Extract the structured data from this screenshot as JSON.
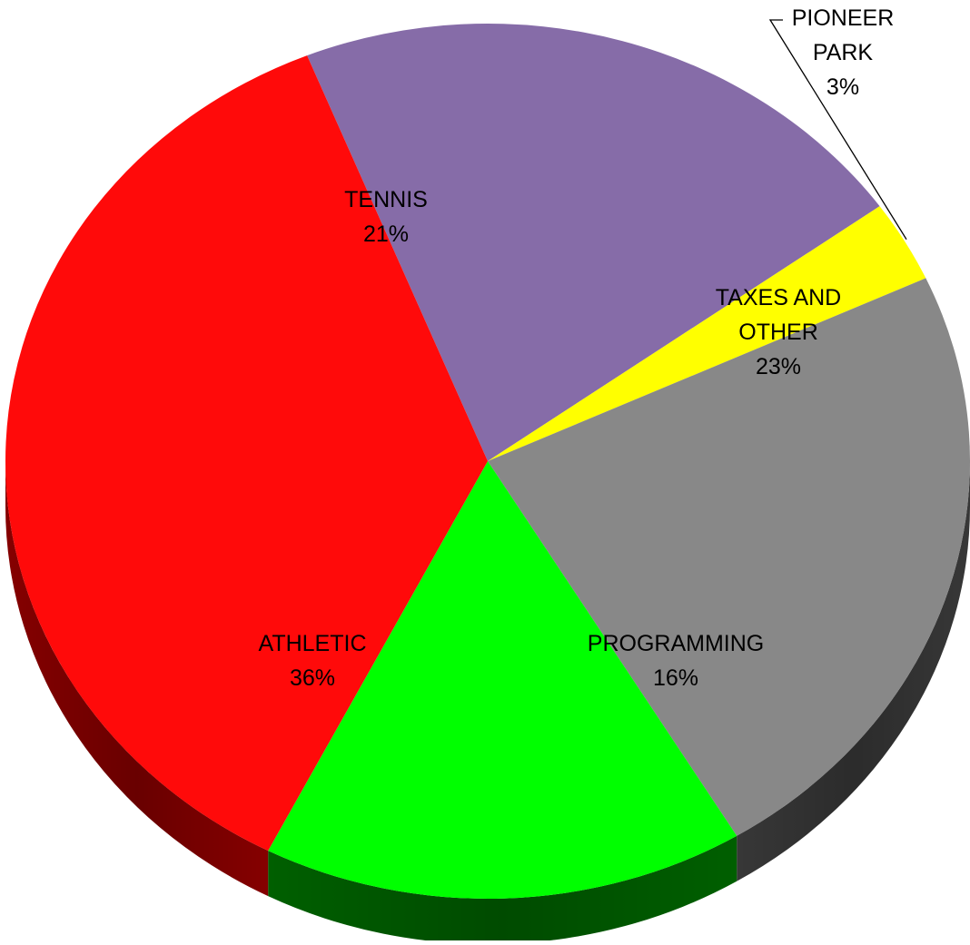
{
  "chart_data": {
    "type": "pie",
    "title": "",
    "three_d": true,
    "start_angle_deg": 248,
    "direction": "clockwise",
    "slices": [
      {
        "key": "tennis",
        "label_lines": [
          "TENNIS"
        ],
        "percent_label": "21%",
        "value": 21,
        "color": "#866CA8",
        "side_color": "#4F3F63"
      },
      {
        "key": "pioneer-park",
        "label_lines": [
          "PIONEER",
          "PARK"
        ],
        "percent_label": "3%",
        "value": 3,
        "color": "#FFFF00",
        "side_color": "#999900"
      },
      {
        "key": "taxes-and-other",
        "label_lines": [
          "TAXES AND",
          "OTHER"
        ],
        "percent_label": "23%",
        "value": 23,
        "color": "#888888",
        "side_color": "#3A3A3A"
      },
      {
        "key": "programming",
        "label_lines": [
          "PROGRAMMING"
        ],
        "percent_label": "16%",
        "value": 16,
        "color": "#00FF00",
        "side_color": "#006400"
      },
      {
        "key": "athletic",
        "label_lines": [
          "ATHLETIC"
        ],
        "percent_label": "36%",
        "value": 36,
        "color": "#FF0A0A",
        "side_color": "#8C0000"
      }
    ]
  }
}
